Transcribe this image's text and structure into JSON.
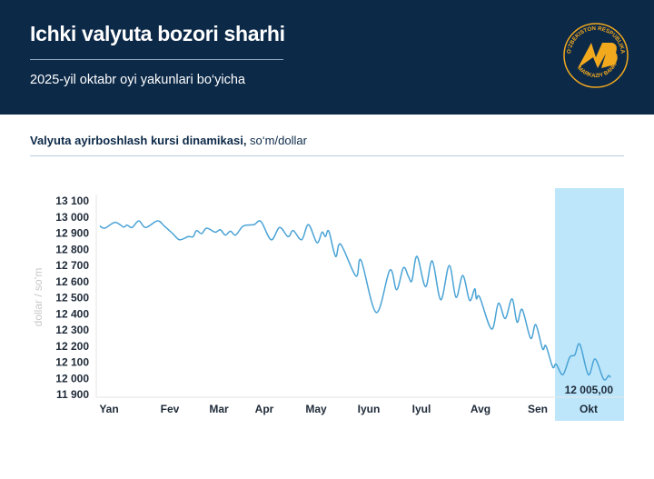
{
  "header": {
    "title": "Ichki valyuta bozori sharhi",
    "subtitle": "2025-yil oktabr oyi yakunlari bo‘yicha",
    "logo_text": "O‘ZBEKISTON RESPUBLIKASI MARKAZIY BANKI",
    "brand_color": "#0c2948",
    "logo_color": "#f2a91e"
  },
  "section": {
    "title_bold": "Valyuta ayirboshlash kursi dinamikasi,",
    "title_unit": " so‘m/dollar"
  },
  "chart_data": {
    "type": "line",
    "title": "Valyuta ayirboshlash kursi dinamikasi, so‘m/dollar",
    "ylabel": "dollar / so‘m",
    "ylim": [
      11900,
      13100
    ],
    "yticks": [
      13100,
      13000,
      12900,
      12800,
      12700,
      12600,
      12500,
      12400,
      12300,
      12200,
      12100,
      12000,
      11900
    ],
    "ytick_labels": [
      "13 100",
      "13 000",
      "12 900",
      "12 800",
      "12 700",
      "12 600",
      "12 500",
      "12 400",
      "12 300",
      "12 200",
      "12 100",
      "12 000",
      "11 900"
    ],
    "xtick_labels": [
      "Yan",
      "Fev",
      "Mar",
      "Apr",
      "May",
      "Iyun",
      "Iyul",
      "Avg",
      "Sen",
      "Okt"
    ],
    "highlight": {
      "label": "Okt",
      "color": "#bde6fb"
    },
    "last_value_label": "12 005,00",
    "line_color": "#4aa3d6",
    "grid": false,
    "points": [
      [
        "2025-01-03",
        12944
      ],
      [
        "2025-01-06",
        12931
      ],
      [
        "2025-01-12",
        12967
      ],
      [
        "2025-01-17",
        12938
      ],
      [
        "2025-01-19",
        12950
      ],
      [
        "2025-01-22",
        12935
      ],
      [
        "2025-01-26",
        12976
      ],
      [
        "2025-01-30",
        12935
      ],
      [
        "2025-02-06",
        12976
      ],
      [
        "2025-02-10",
        12944
      ],
      [
        "2025-02-15",
        12897
      ],
      [
        "2025-02-19",
        12859
      ],
      [
        "2025-02-24",
        12878
      ],
      [
        "2025-02-27",
        12878
      ],
      [
        "2025-03-01",
        12916
      ],
      [
        "2025-03-04",
        12897
      ],
      [
        "2025-03-07",
        12931
      ],
      [
        "2025-03-12",
        12906
      ],
      [
        "2025-03-15",
        12921
      ],
      [
        "2025-03-18",
        12888
      ],
      [
        "2025-03-21",
        12912
      ],
      [
        "2025-03-24",
        12888
      ],
      [
        "2025-03-28",
        12940
      ],
      [
        "2025-03-31",
        12950
      ],
      [
        "2025-04-04",
        12953
      ],
      [
        "2025-04-08",
        12972
      ],
      [
        "2025-04-14",
        12859
      ],
      [
        "2025-04-19",
        12935
      ],
      [
        "2025-04-24",
        12878
      ],
      [
        "2025-04-27",
        12916
      ],
      [
        "2025-05-02",
        12859
      ],
      [
        "2025-05-06",
        12953
      ],
      [
        "2025-05-11",
        12841
      ],
      [
        "2025-05-14",
        12906
      ],
      [
        "2025-05-16",
        12878
      ],
      [
        "2025-05-18",
        12912
      ],
      [
        "2025-05-22",
        12756
      ],
      [
        "2025-05-25",
        12831
      ],
      [
        "2025-06-03",
        12634
      ],
      [
        "2025-06-06",
        12732
      ],
      [
        "2025-06-15",
        12408
      ],
      [
        "2025-06-23",
        12671
      ],
      [
        "2025-06-27",
        12549
      ],
      [
        "2025-07-01",
        12686
      ],
      [
        "2025-07-04",
        12630
      ],
      [
        "2025-07-06",
        12606
      ],
      [
        "2025-07-09",
        12756
      ],
      [
        "2025-07-14",
        12568
      ],
      [
        "2025-07-18",
        12728
      ],
      [
        "2025-07-23",
        12487
      ],
      [
        "2025-07-28",
        12700
      ],
      [
        "2025-08-01",
        12502
      ],
      [
        "2025-08-05",
        12638
      ],
      [
        "2025-08-09",
        12483
      ],
      [
        "2025-08-12",
        12555
      ],
      [
        "2025-08-13",
        12493
      ],
      [
        "2025-08-15",
        12502
      ],
      [
        "2025-08-22",
        12305
      ],
      [
        "2025-08-26",
        12465
      ],
      [
        "2025-08-30",
        12371
      ],
      [
        "2025-09-03",
        12493
      ],
      [
        "2025-09-06",
        12348
      ],
      [
        "2025-09-09",
        12427
      ],
      [
        "2025-09-14",
        12248
      ],
      [
        "2025-09-17",
        12333
      ],
      [
        "2025-09-21",
        12183
      ],
      [
        "2025-09-23",
        12201
      ],
      [
        "2025-09-27",
        12070
      ],
      [
        "2025-09-29",
        12088
      ],
      [
        "2025-10-03",
        12023
      ],
      [
        "2025-10-07",
        12130
      ],
      [
        "2025-10-10",
        12145
      ],
      [
        "2025-10-13",
        12211
      ],
      [
        "2025-10-18",
        12023
      ],
      [
        "2025-10-22",
        12120
      ],
      [
        "2025-10-27",
        11995
      ],
      [
        "2025-10-30",
        12017
      ],
      [
        "2025-10-31",
        12005
      ]
    ]
  }
}
